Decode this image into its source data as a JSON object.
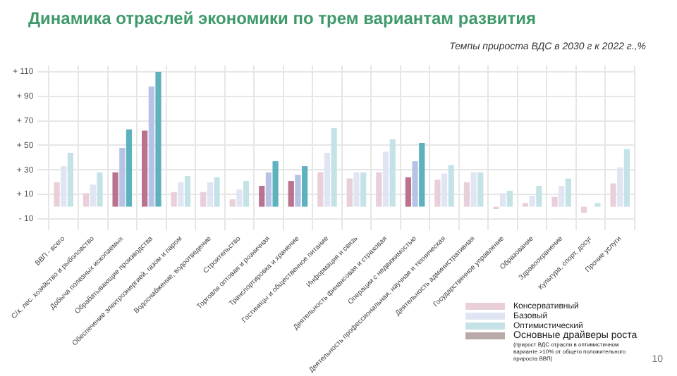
{
  "chart_data": {
    "type": "bar",
    "title": "Динамика отраслей экономики по трем вариантам развития",
    "subtitle": "Темпы прироста ВДС в 2030 г к 2022 г.,%",
    "categories": [
      "ВВП - всего",
      "С/х, лес. хозяйство и рыболовство",
      "Добыча полезных ископаемых",
      "Обрабатывающие производства",
      "Обеспечение электроэнергией, газом и паром",
      "Водоснабжение, водоотведение",
      "Строительство",
      "Торговля оптовая и розничная",
      "Транспортировка и хранение",
      "Гостиницы и общественное питание",
      "Информация и связь",
      "Деятельность финансовая и страховая",
      "Операции с недвижимостью",
      "Деятельность профессиональная, научная и техническая",
      "Деятельность административная",
      "Государственное управление",
      "Образование",
      "Здравоохранение",
      "Культура, спорт, досуг",
      "Прочие услуги"
    ],
    "series": [
      {
        "name": "Консервативный",
        "color": "#e9cfd9",
        "colors": [
          "#e9cfd9",
          "#e9cfd9",
          "#b9738f",
          "#b9738f",
          "#e9cfd9",
          "#e9cfd9",
          "#e9cfd9",
          "#b9738f",
          "#b9738f",
          "#e9cfd9",
          "#e9cfd9",
          "#e9cfd9",
          "#b9738f",
          "#e9cfd9",
          "#e9cfd9",
          "#e9cfd9",
          "#e9cfd9",
          "#e9cfd9",
          "#e9cfd9",
          "#e9cfd9"
        ],
        "values": [
          20,
          11,
          28,
          62,
          12,
          12,
          6,
          17,
          21,
          28,
          23,
          28,
          24,
          22,
          20,
          -2,
          3,
          8,
          -5,
          19
        ]
      },
      {
        "name": "Базовый",
        "color": "#dfe5f2",
        "colors": [
          "#dfe5f2",
          "#dfe5f2",
          "#b7c3e6",
          "#b7c3e6",
          "#dfe5f2",
          "#dfe5f2",
          "#dfe5f2",
          "#b7c3e6",
          "#b7c3e6",
          "#dfe5f2",
          "#dfe5f2",
          "#dfe5f2",
          "#b7c3e6",
          "#dfe5f2",
          "#dfe5f2",
          "#dfe5f2",
          "#dfe5f2",
          "#dfe5f2",
          "#dfe5f2",
          "#dfe5f2"
        ],
        "values": [
          33,
          18,
          48,
          98,
          20,
          20,
          14,
          28,
          26,
          44,
          28,
          45,
          37,
          27,
          28,
          11,
          9,
          17,
          0,
          32
        ]
      },
      {
        "name": "Оптимистический",
        "color": "#c5e3e7",
        "colors": [
          "#c5e3e7",
          "#c5e3e7",
          "#5eb2bd",
          "#5eb2bd",
          "#c5e3e7",
          "#c5e3e7",
          "#c5e3e7",
          "#5eb2bd",
          "#5eb2bd",
          "#c5e3e7",
          "#c5e3e7",
          "#c5e3e7",
          "#5eb2bd",
          "#c5e3e7",
          "#c5e3e7",
          "#c5e3e7",
          "#c5e3e7",
          "#c5e3e7",
          "#c5e3e7",
          "#c5e3e7"
        ],
        "values": [
          44,
          28,
          63,
          110,
          25,
          24,
          21,
          37,
          33,
          64,
          28,
          55,
          52,
          34,
          28,
          13,
          17,
          23,
          3,
          47
        ]
      }
    ],
    "ylim": [
      -10,
      115
    ],
    "yticks": [
      {
        "value": -10,
        "label": "- 10"
      },
      {
        "value": 10,
        "label": "+ 10"
      },
      {
        "value": 30,
        "label": "+ 30"
      },
      {
        "value": 50,
        "label": "+ 50"
      },
      {
        "value": 70,
        "label": "+ 70"
      },
      {
        "value": 90,
        "label": "+ 90"
      },
      {
        "value": 110,
        "label": "+ 110"
      }
    ],
    "grid": true,
    "legend": "bottom right",
    "annotations": [
      "Основные драйверы роста",
      "(прирост ВДС отрасли в оптимистичном варианте >10% от общего положительного прироста ВВП)",
      "10"
    ]
  }
}
